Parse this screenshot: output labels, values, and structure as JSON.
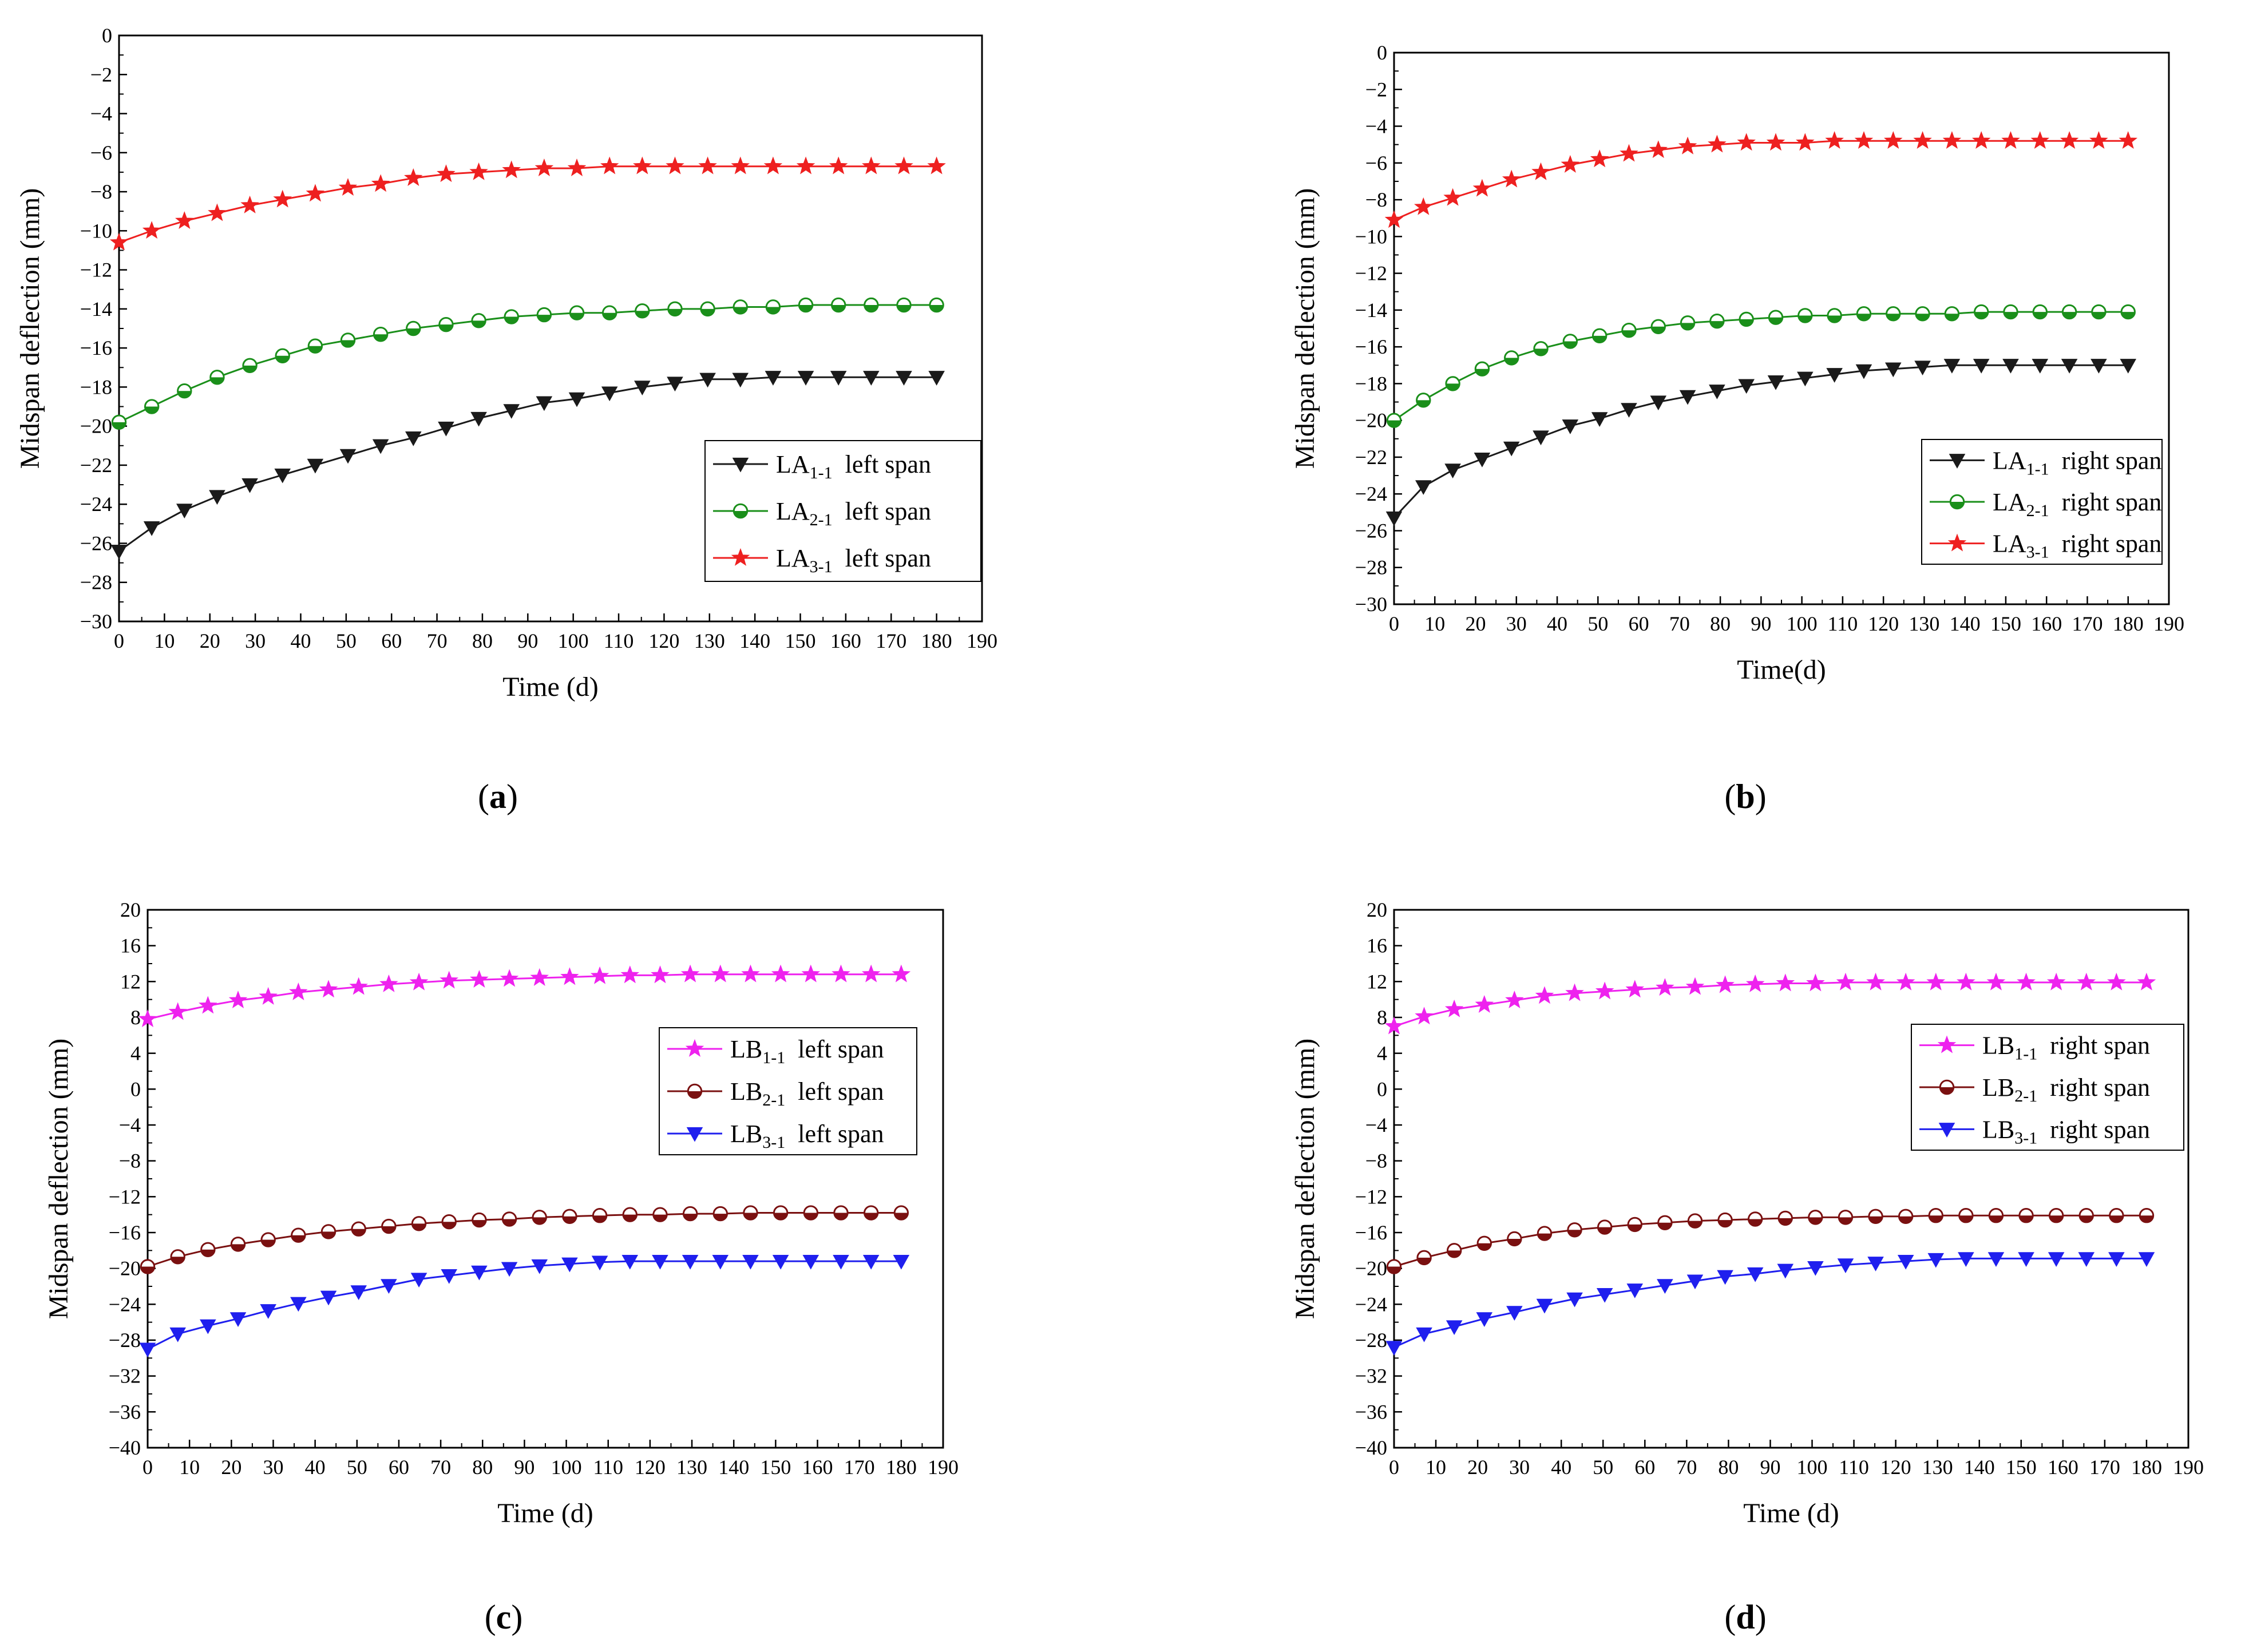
{
  "colors": {
    "black": "#1a1a1a",
    "green": "#1a8f1a",
    "red": "#ee2020",
    "magenta": "#ee22ee",
    "darkred": "#7a1010",
    "blue": "#1f1fee"
  },
  "chart_data": [
    {
      "panel": "a",
      "type": "line",
      "caption": "a",
      "xlabel": "Time (d)",
      "ylabel": "Midspan deflection (mm)",
      "xlim": [
        0,
        190
      ],
      "ylim": [
        -30,
        0
      ],
      "xticks": [
        "0",
        "10",
        "20",
        "30",
        "40",
        "50",
        "60",
        "70",
        "80",
        "90",
        "100",
        "110",
        "120",
        "130",
        "140",
        "150",
        "160",
        "170",
        "180",
        "190"
      ],
      "yticks": [
        "0",
        "−2",
        "−4",
        "−6",
        "−8",
        "−10",
        "−12",
        "−14",
        "−16",
        "−18",
        "−20",
        "−22",
        "−24",
        "−26",
        "−28",
        "−30"
      ],
      "legend_position": "middle-right",
      "series": [
        {
          "name_main": "LA",
          "name_sub": "1-1",
          "name_rest": "left span",
          "color_key": "black",
          "marker": "triangle-down",
          "x": [
            0,
            7.2,
            14.4,
            21.6,
            28.8,
            36,
            43.2,
            50.4,
            57.6,
            64.8,
            72,
            79.2,
            86.4,
            93.6,
            100.8,
            108,
            115.2,
            122.4,
            129.6,
            136.8,
            144,
            151.2,
            158.4,
            165.6,
            172.8,
            180
          ],
          "y": [
            -26.4,
            -25.2,
            -24.3,
            -23.6,
            -23.0,
            -22.5,
            -22.0,
            -21.5,
            -21.0,
            -20.6,
            -20.1,
            -19.6,
            -19.2,
            -18.8,
            -18.6,
            -18.3,
            -18.0,
            -17.8,
            -17.6,
            -17.6,
            -17.5,
            -17.5,
            -17.5,
            -17.5,
            -17.5,
            -17.5
          ]
        },
        {
          "name_main": "LA",
          "name_sub": "2-1",
          "name_rest": "left span",
          "color_key": "green",
          "marker": "circle-half",
          "x": [
            0,
            7.2,
            14.4,
            21.6,
            28.8,
            36,
            43.2,
            50.4,
            57.6,
            64.8,
            72,
            79.2,
            86.4,
            93.6,
            100.8,
            108,
            115.2,
            122.4,
            129.6,
            136.8,
            144,
            151.2,
            158.4,
            165.6,
            172.8,
            180
          ],
          "y": [
            -19.8,
            -19.0,
            -18.2,
            -17.5,
            -16.9,
            -16.4,
            -15.9,
            -15.6,
            -15.3,
            -15.0,
            -14.8,
            -14.6,
            -14.4,
            -14.3,
            -14.2,
            -14.2,
            -14.1,
            -14.0,
            -14.0,
            -13.9,
            -13.9,
            -13.8,
            -13.8,
            -13.8,
            -13.8,
            -13.8
          ]
        },
        {
          "name_main": "LA",
          "name_sub": "3-1",
          "name_rest": "left span",
          "color_key": "red",
          "marker": "star",
          "x": [
            0,
            7.2,
            14.4,
            21.6,
            28.8,
            36,
            43.2,
            50.4,
            57.6,
            64.8,
            72,
            79.2,
            86.4,
            93.6,
            100.8,
            108,
            115.2,
            122.4,
            129.6,
            136.8,
            144,
            151.2,
            158.4,
            165.6,
            172.8,
            180
          ],
          "y": [
            -10.6,
            -10.0,
            -9.5,
            -9.1,
            -8.7,
            -8.4,
            -8.1,
            -7.8,
            -7.6,
            -7.3,
            -7.1,
            -7.0,
            -6.9,
            -6.8,
            -6.8,
            -6.7,
            -6.7,
            -6.7,
            -6.7,
            -6.7,
            -6.7,
            -6.7,
            -6.7,
            -6.7,
            -6.7,
            -6.7
          ]
        }
      ]
    },
    {
      "panel": "b",
      "type": "line",
      "caption": "b",
      "xlabel": "Time(d)",
      "ylabel": "Midspan deflection (mm)",
      "xlim": [
        0,
        190
      ],
      "ylim": [
        -30,
        0
      ],
      "xticks": [
        "0",
        "10",
        "20",
        "30",
        "40",
        "50",
        "60",
        "70",
        "80",
        "90",
        "100",
        "110",
        "120",
        "130",
        "140",
        "150",
        "160",
        "170",
        "180",
        "190"
      ],
      "yticks": [
        "0",
        "−2",
        "−4",
        "−6",
        "−8",
        "−10",
        "−12",
        "−14",
        "−16",
        "−18",
        "−20",
        "−22",
        "−24",
        "−26",
        "−28",
        "−30"
      ],
      "legend_position": "middle-right",
      "series": [
        {
          "name_main": "LA",
          "name_sub": "1-1",
          "name_rest": "right span",
          "color_key": "black",
          "marker": "triangle-down",
          "x": [
            0,
            7.2,
            14.4,
            21.6,
            28.8,
            36,
            43.2,
            50.4,
            57.6,
            64.8,
            72,
            79.2,
            86.4,
            93.6,
            100.8,
            108,
            115.2,
            122.4,
            129.6,
            136.8,
            144,
            151.2,
            158.4,
            165.6,
            172.8,
            180
          ],
          "y": [
            -25.3,
            -23.6,
            -22.7,
            -22.1,
            -21.5,
            -20.9,
            -20.3,
            -19.9,
            -19.4,
            -19.0,
            -18.7,
            -18.4,
            -18.1,
            -17.9,
            -17.7,
            -17.5,
            -17.3,
            -17.2,
            -17.1,
            -17.0,
            -17.0,
            -17.0,
            -17.0,
            -17.0,
            -17.0,
            -17.0
          ]
        },
        {
          "name_main": "LA",
          "name_sub": "2-1",
          "name_rest": "right span",
          "color_key": "green",
          "marker": "circle-half",
          "x": [
            0,
            7.2,
            14.4,
            21.6,
            28.8,
            36,
            43.2,
            50.4,
            57.6,
            64.8,
            72,
            79.2,
            86.4,
            93.6,
            100.8,
            108,
            115.2,
            122.4,
            129.6,
            136.8,
            144,
            151.2,
            158.4,
            165.6,
            172.8,
            180
          ],
          "y": [
            -20.0,
            -18.9,
            -18.0,
            -17.2,
            -16.6,
            -16.1,
            -15.7,
            -15.4,
            -15.1,
            -14.9,
            -14.7,
            -14.6,
            -14.5,
            -14.4,
            -14.3,
            -14.3,
            -14.2,
            -14.2,
            -14.2,
            -14.2,
            -14.1,
            -14.1,
            -14.1,
            -14.1,
            -14.1,
            -14.1
          ]
        },
        {
          "name_main": "LA",
          "name_sub": "3-1",
          "name_rest": "right span",
          "color_key": "red",
          "marker": "star",
          "x": [
            0,
            7.2,
            14.4,
            21.6,
            28.8,
            36,
            43.2,
            50.4,
            57.6,
            64.8,
            72,
            79.2,
            86.4,
            93.6,
            100.8,
            108,
            115.2,
            122.4,
            129.6,
            136.8,
            144,
            151.2,
            158.4,
            165.6,
            172.8,
            180
          ],
          "y": [
            -9.1,
            -8.4,
            -7.9,
            -7.4,
            -6.9,
            -6.5,
            -6.1,
            -5.8,
            -5.5,
            -5.3,
            -5.1,
            -5.0,
            -4.9,
            -4.9,
            -4.9,
            -4.8,
            -4.8,
            -4.8,
            -4.8,
            -4.8,
            -4.8,
            -4.8,
            -4.8,
            -4.8,
            -4.8,
            -4.8
          ]
        }
      ]
    },
    {
      "panel": "c",
      "type": "line",
      "caption": "c",
      "xlabel": "Time (d)",
      "ylabel": "Midspan deflection (mm)",
      "xlim": [
        0,
        190
      ],
      "ylim": [
        -40,
        20
      ],
      "xticks": [
        "0",
        "10",
        "20",
        "30",
        "40",
        "50",
        "60",
        "70",
        "80",
        "90",
        "100",
        "110",
        "120",
        "130",
        "140",
        "150",
        "160",
        "170",
        "180",
        "190"
      ],
      "yticks": [
        "20",
        "16",
        "12",
        "8",
        "4",
        "0",
        "−4",
        "−8",
        "−12",
        "−16",
        "−20",
        "−24",
        "−28",
        "−32",
        "−36",
        "−40"
      ],
      "legend_position": "middle-right",
      "series": [
        {
          "name_main": "LB",
          "name_sub": "1-1",
          "name_rest": "left span",
          "color_key": "magenta",
          "marker": "star",
          "x": [
            0,
            7.2,
            14.4,
            21.6,
            28.8,
            36,
            43.2,
            50.4,
            57.6,
            64.8,
            72,
            79.2,
            86.4,
            93.6,
            100.8,
            108,
            115.2,
            122.4,
            129.6,
            136.8,
            144,
            151.2,
            158.4,
            165.6,
            172.8,
            180
          ],
          "y": [
            7.8,
            8.6,
            9.3,
            9.9,
            10.3,
            10.8,
            11.1,
            11.4,
            11.7,
            11.9,
            12.1,
            12.2,
            12.3,
            12.4,
            12.5,
            12.6,
            12.7,
            12.7,
            12.8,
            12.8,
            12.8,
            12.8,
            12.8,
            12.8,
            12.8,
            12.8
          ]
        },
        {
          "name_main": "LB",
          "name_sub": "2-1",
          "name_rest": "left span",
          "color_key": "darkred",
          "marker": "circle-half",
          "x": [
            0,
            7.2,
            14.4,
            21.6,
            28.8,
            36,
            43.2,
            50.4,
            57.6,
            64.8,
            72,
            79.2,
            86.4,
            93.6,
            100.8,
            108,
            115.2,
            122.4,
            129.6,
            136.8,
            144,
            151.2,
            158.4,
            165.6,
            172.8,
            180
          ],
          "y": [
            -19.8,
            -18.7,
            -17.9,
            -17.3,
            -16.8,
            -16.3,
            -15.9,
            -15.6,
            -15.3,
            -15.0,
            -14.8,
            -14.6,
            -14.5,
            -14.3,
            -14.2,
            -14.1,
            -14.0,
            -14.0,
            -13.9,
            -13.9,
            -13.8,
            -13.8,
            -13.8,
            -13.8,
            -13.8,
            -13.8
          ]
        },
        {
          "name_main": "LB",
          "name_sub": "3-1",
          "name_rest": "left span",
          "color_key": "blue",
          "marker": "triangle-down",
          "x": [
            0,
            7.2,
            14.4,
            21.6,
            28.8,
            36,
            43.2,
            50.4,
            57.6,
            64.8,
            72,
            79.2,
            86.4,
            93.6,
            100.8,
            108,
            115.2,
            122.4,
            129.6,
            136.8,
            144,
            151.2,
            158.4,
            165.6,
            172.8,
            180
          ],
          "y": [
            -29.0,
            -27.3,
            -26.4,
            -25.6,
            -24.7,
            -23.9,
            -23.2,
            -22.6,
            -21.9,
            -21.2,
            -20.8,
            -20.4,
            -20.0,
            -19.7,
            -19.5,
            -19.3,
            -19.2,
            -19.2,
            -19.2,
            -19.2,
            -19.2,
            -19.2,
            -19.2,
            -19.2,
            -19.2,
            -19.2
          ]
        }
      ]
    },
    {
      "panel": "d",
      "type": "line",
      "caption": "d",
      "xlabel": "Time (d)",
      "ylabel": "Midspan deflection (mm)",
      "xlim": [
        0,
        190
      ],
      "ylim": [
        -40,
        20
      ],
      "xticks": [
        "0",
        "10",
        "20",
        "30",
        "40",
        "50",
        "60",
        "70",
        "80",
        "90",
        "100",
        "110",
        "120",
        "130",
        "140",
        "150",
        "160",
        "170",
        "180",
        "190"
      ],
      "yticks": [
        "20",
        "16",
        "12",
        "8",
        "4",
        "0",
        "−4",
        "−8",
        "−12",
        "−16",
        "−20",
        "−24",
        "−28",
        "−32",
        "−36",
        "−40"
      ],
      "legend_position": "top-right",
      "series": [
        {
          "name_main": "LB",
          "name_sub": "1-1",
          "name_rest": "right span",
          "color_key": "magenta",
          "marker": "star",
          "x": [
            0,
            7.2,
            14.4,
            21.6,
            28.8,
            36,
            43.2,
            50.4,
            57.6,
            64.8,
            72,
            79.2,
            86.4,
            93.6,
            100.8,
            108,
            115.2,
            122.4,
            129.6,
            136.8,
            144,
            151.2,
            158.4,
            165.6,
            172.8,
            180
          ],
          "y": [
            7.0,
            8.1,
            8.9,
            9.4,
            9.9,
            10.4,
            10.7,
            10.9,
            11.1,
            11.3,
            11.4,
            11.6,
            11.7,
            11.8,
            11.8,
            11.9,
            11.9,
            11.9,
            11.9,
            11.9,
            11.9,
            11.9,
            11.9,
            11.9,
            11.9,
            11.9
          ]
        },
        {
          "name_main": "LB",
          "name_sub": "2-1",
          "name_rest": "right span",
          "color_key": "darkred",
          "marker": "circle-half",
          "x": [
            0,
            7.2,
            14.4,
            21.6,
            28.8,
            36,
            43.2,
            50.4,
            57.6,
            64.8,
            72,
            79.2,
            86.4,
            93.6,
            100.8,
            108,
            115.2,
            122.4,
            129.6,
            136.8,
            144,
            151.2,
            158.4,
            165.6,
            172.8,
            180
          ],
          "y": [
            -19.8,
            -18.8,
            -18.0,
            -17.2,
            -16.7,
            -16.1,
            -15.7,
            -15.4,
            -15.1,
            -14.9,
            -14.7,
            -14.6,
            -14.5,
            -14.4,
            -14.3,
            -14.3,
            -14.2,
            -14.2,
            -14.1,
            -14.1,
            -14.1,
            -14.1,
            -14.1,
            -14.1,
            -14.1,
            -14.1
          ]
        },
        {
          "name_main": "LB",
          "name_sub": "3-1",
          "name_rest": "right span",
          "color_key": "blue",
          "marker": "triangle-down",
          "x": [
            0,
            7.2,
            14.4,
            21.6,
            28.8,
            36,
            43.2,
            50.4,
            57.6,
            64.8,
            72,
            79.2,
            86.4,
            93.6,
            100.8,
            108,
            115.2,
            122.4,
            129.6,
            136.8,
            144,
            151.2,
            158.4,
            165.6,
            172.8,
            180
          ],
          "y": [
            -28.8,
            -27.3,
            -26.5,
            -25.6,
            -24.9,
            -24.1,
            -23.4,
            -22.9,
            -22.4,
            -21.9,
            -21.4,
            -20.9,
            -20.6,
            -20.2,
            -19.9,
            -19.6,
            -19.4,
            -19.2,
            -19.0,
            -18.9,
            -18.9,
            -18.9,
            -18.9,
            -18.9,
            -18.9,
            -18.9
          ]
        }
      ]
    }
  ]
}
